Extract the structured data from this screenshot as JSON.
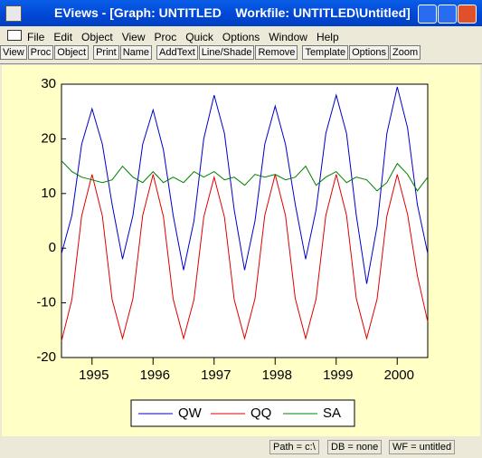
{
  "window": {
    "title": "EViews - [Graph: UNTITLED    Workfile: UNTITLED\\Untitled]",
    "menu": [
      "File",
      "Edit",
      "Object",
      "View",
      "Proc",
      "Quick",
      "Options",
      "Window",
      "Help"
    ],
    "toolbar": [
      "View",
      "Proc",
      "Object",
      "Print",
      "Name",
      "AddText",
      "Line/Shade",
      "Remove",
      "Template",
      "Options",
      "Zoom"
    ],
    "status": [
      "Path = c:\\",
      "DB = none",
      "WF = untitled"
    ]
  },
  "chart_data": {
    "type": "line",
    "x": [
      1994.5,
      1994.67,
      1994.83,
      1995,
      1995.17,
      1995.33,
      1995.5,
      1995.67,
      1995.83,
      1996,
      1996.17,
      1996.33,
      1996.5,
      1996.67,
      1996.83,
      1997,
      1997.17,
      1997.33,
      1997.5,
      1997.67,
      1997.83,
      1998,
      1998.17,
      1998.33,
      1998.5,
      1998.67,
      1998.83,
      1999,
      1999.17,
      1999.33,
      1999.5,
      1999.67,
      1999.83,
      2000,
      2000.17,
      2000.33,
      2000.5
    ],
    "series": [
      {
        "name": "QW",
        "color": "#0000c8",
        "values": [
          -1,
          6,
          19,
          25.5,
          19,
          8,
          -2,
          6,
          19,
          25.3,
          18,
          6,
          -4,
          5,
          20,
          28,
          21,
          7,
          -4,
          5,
          19,
          26,
          19,
          8,
          -2,
          7,
          21,
          28,
          21,
          6,
          -6.5,
          4,
          21,
          29.5,
          22,
          8,
          -1
        ]
      },
      {
        "name": "QQ",
        "color": "#e00000",
        "values": [
          -17,
          -9.4,
          5.9,
          13.5,
          5.9,
          -9.4,
          -16.5,
          -9.2,
          6,
          13.5,
          5.8,
          -9.3,
          -16.5,
          -9.4,
          5.7,
          13,
          5.7,
          -9.4,
          -16.5,
          -9.2,
          6,
          13.5,
          6,
          -9.2,
          -16.5,
          -9.3,
          6,
          13.5,
          6,
          -9.2,
          -16.5,
          -9.3,
          5.9,
          13.5,
          6.2,
          -5,
          -13.5
        ]
      },
      {
        "name": "SA",
        "color": "#008000",
        "values": [
          16,
          14,
          13,
          12.5,
          12,
          12.5,
          15,
          13,
          12,
          14,
          12,
          13,
          12,
          14,
          13,
          14,
          12.5,
          13,
          11.5,
          13.5,
          13,
          13.5,
          12.5,
          13,
          15,
          11.5,
          13,
          14,
          12,
          13,
          12.5,
          10.5,
          12,
          15.5,
          13.5,
          10.5,
          13
        ]
      }
    ],
    "xlim": [
      1994.5,
      2000.5
    ],
    "xticks": [
      1995,
      1996,
      1997,
      1998,
      1999,
      2000
    ],
    "ylim": [
      -20,
      30
    ],
    "yticks": [
      -20,
      -10,
      0,
      10,
      20,
      30
    ]
  }
}
